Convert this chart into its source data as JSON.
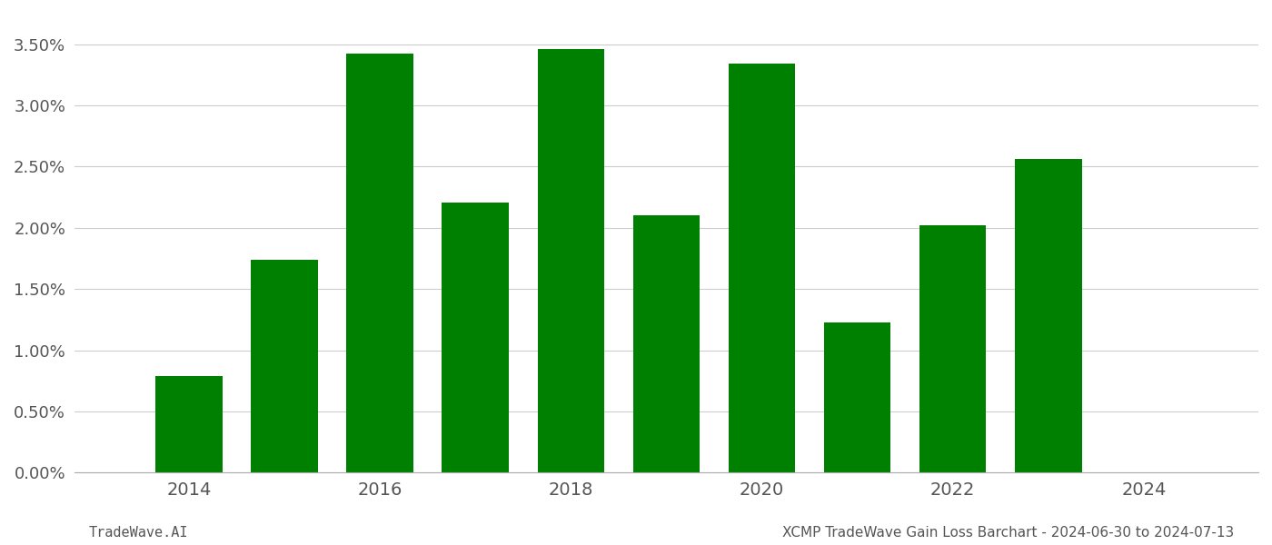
{
  "years": [
    2014,
    2015,
    2016,
    2017,
    2018,
    2019,
    2020,
    2021,
    2022,
    2023
  ],
  "values": [
    0.0079,
    0.0174,
    0.0342,
    0.0221,
    0.0346,
    0.021,
    0.0334,
    0.0123,
    0.0202,
    0.0256
  ],
  "bar_color": "#008000",
  "ylim": [
    0,
    0.0375
  ],
  "yticks": [
    0.0,
    0.005,
    0.01,
    0.015,
    0.02,
    0.025,
    0.03,
    0.035
  ],
  "xlim": [
    2012.8,
    2025.2
  ],
  "xticks": [
    2014,
    2016,
    2018,
    2020,
    2022,
    2024
  ],
  "xlabel": "",
  "ylabel": "",
  "title": "",
  "footer_left": "TradeWave.AI",
  "footer_right": "XCMP TradeWave Gain Loss Barchart - 2024-06-30 to 2024-07-13",
  "background_color": "#ffffff",
  "grid_color": "#cccccc",
  "bar_width": 0.7,
  "xtick_fontsize": 14,
  "ytick_fontsize": 13,
  "footer_fontsize": 11
}
